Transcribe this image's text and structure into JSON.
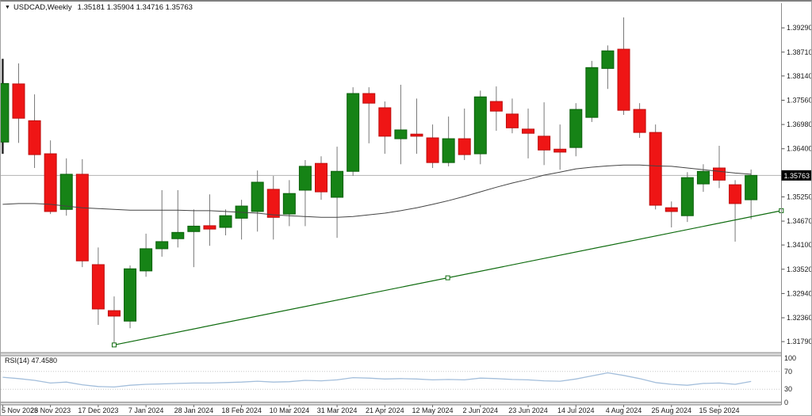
{
  "window": {
    "symbol_dropdown_icon": "▼",
    "title": "USDCAD,Weekly",
    "ohlc_display": "1.35181 1.35904 1.34716 1.35763"
  },
  "chart_data": {
    "type": "candlestick",
    "symbol": "USDCAD",
    "timeframe": "Weekly",
    "current_bar": {
      "open": 1.35181,
      "high": 1.35904,
      "low": 1.34716,
      "close": 1.35763
    },
    "price_axis": {
      "labels": [
        "1.39290",
        "1.38710",
        "1.38140",
        "1.37560",
        "1.36980",
        "1.36400",
        "1.35820",
        "1.35250",
        "1.34670",
        "1.34100",
        "1.33520",
        "1.32940",
        "1.32360",
        "1.31790"
      ],
      "values": [
        1.3929,
        1.3871,
        1.3814,
        1.3756,
        1.3698,
        1.364,
        1.3582,
        1.3525,
        1.3467,
        1.341,
        1.3352,
        1.3294,
        1.3236,
        1.3179
      ],
      "top_price": 1.39596,
      "bottom_price": 1.31527,
      "current_price": 1.35763,
      "current_price_label": "1.35763"
    },
    "x_axis": {
      "tick_labels": [
        "5 Nov 2023",
        "26 Nov 2023",
        "17 Dec 2023",
        "7 Jan 2024",
        "28 Jan 2024",
        "18 Feb 2024",
        "10 Mar 2024",
        "31 Mar 2024",
        "21 Apr 2024",
        "12 May 2024",
        "2 Jun 2024",
        "23 Jun 2024",
        "14 Jul 2024",
        "4 Aug 2024",
        "25 Aug 2024",
        "15 Sep 2024"
      ],
      "tick_every": 3
    },
    "candles": [
      {
        "d": "5 Nov 2023",
        "o": 1.3656,
        "h": 1.3855,
        "l": 1.3628,
        "c": 1.3796
      },
      {
        "d": "12 Nov 2023",
        "o": 1.3795,
        "h": 1.3844,
        "l": 1.3654,
        "c": 1.3713
      },
      {
        "d": "19 Nov 2023",
        "o": 1.3707,
        "h": 1.377,
        "l": 1.3594,
        "c": 1.3626
      },
      {
        "d": "26 Nov 2023",
        "o": 1.3628,
        "h": 1.366,
        "l": 1.3484,
        "c": 1.349
      },
      {
        "d": "3 Dec 2023",
        "o": 1.3495,
        "h": 1.3617,
        "l": 1.348,
        "c": 1.3579
      },
      {
        "d": "10 Dec 2023",
        "o": 1.3579,
        "h": 1.3615,
        "l": 1.3357,
        "c": 1.3372
      },
      {
        "d": "17 Dec 2023",
        "o": 1.3363,
        "h": 1.3404,
        "l": 1.3219,
        "c": 1.3257
      },
      {
        "d": "24 Dec 2023",
        "o": 1.3253,
        "h": 1.3287,
        "l": 1.3171,
        "c": 1.324
      },
      {
        "d": "31 Dec 2023",
        "o": 1.3228,
        "h": 1.3361,
        "l": 1.3211,
        "c": 1.3353
      },
      {
        "d": "7 Jan 2024",
        "o": 1.3348,
        "h": 1.3437,
        "l": 1.3334,
        "c": 1.3401
      },
      {
        "d": "14 Jan 2024",
        "o": 1.3401,
        "h": 1.3541,
        "l": 1.3382,
        "c": 1.3418
      },
      {
        "d": "21 Jan 2024",
        "o": 1.3425,
        "h": 1.3541,
        "l": 1.3404,
        "c": 1.344
      },
      {
        "d": "28 Jan 2024",
        "o": 1.3442,
        "h": 1.3495,
        "l": 1.3357,
        "c": 1.3455
      },
      {
        "d": "4 Feb 2024",
        "o": 1.3456,
        "h": 1.3531,
        "l": 1.3408,
        "c": 1.3448
      },
      {
        "d": "11 Feb 2024",
        "o": 1.3452,
        "h": 1.3495,
        "l": 1.3433,
        "c": 1.348
      },
      {
        "d": "18 Feb 2024",
        "o": 1.3474,
        "h": 1.3518,
        "l": 1.3423,
        "c": 1.3503
      },
      {
        "d": "25 Feb 2024",
        "o": 1.349,
        "h": 1.3588,
        "l": 1.3442,
        "c": 1.356
      },
      {
        "d": "3 Mar 2024",
        "o": 1.3543,
        "h": 1.3575,
        "l": 1.3423,
        "c": 1.3476
      },
      {
        "d": "10 Mar 2024",
        "o": 1.3484,
        "h": 1.3565,
        "l": 1.3455,
        "c": 1.3533
      },
      {
        "d": "17 Mar 2024",
        "o": 1.3541,
        "h": 1.3613,
        "l": 1.3455,
        "c": 1.3598
      },
      {
        "d": "24 Mar 2024",
        "o": 1.3605,
        "h": 1.3622,
        "l": 1.3518,
        "c": 1.3537
      },
      {
        "d": "31 Mar 2024",
        "o": 1.3524,
        "h": 1.3645,
        "l": 1.3427,
        "c": 1.3586
      },
      {
        "d": "7 Apr 2024",
        "o": 1.3586,
        "h": 1.3787,
        "l": 1.3575,
        "c": 1.3772
      },
      {
        "d": "14 Apr 2024",
        "o": 1.3772,
        "h": 1.3787,
        "l": 1.3653,
        "c": 1.3749
      },
      {
        "d": "21 Apr 2024",
        "o": 1.3738,
        "h": 1.3753,
        "l": 1.3628,
        "c": 1.367
      },
      {
        "d": "28 Apr 2024",
        "o": 1.3664,
        "h": 1.3793,
        "l": 1.3603,
        "c": 1.3685
      },
      {
        "d": "5 May 2024",
        "o": 1.3675,
        "h": 1.376,
        "l": 1.3628,
        "c": 1.367
      },
      {
        "d": "12 May 2024",
        "o": 1.3666,
        "h": 1.3698,
        "l": 1.3594,
        "c": 1.3607
      },
      {
        "d": "19 May 2024",
        "o": 1.3607,
        "h": 1.3717,
        "l": 1.3598,
        "c": 1.3664
      },
      {
        "d": "26 May 2024",
        "o": 1.3664,
        "h": 1.3736,
        "l": 1.3613,
        "c": 1.3626
      },
      {
        "d": "2 Jun 2024",
        "o": 1.3628,
        "h": 1.3779,
        "l": 1.3603,
        "c": 1.3764
      },
      {
        "d": "9 Jun 2024",
        "o": 1.3753,
        "h": 1.3789,
        "l": 1.3683,
        "c": 1.373
      },
      {
        "d": "16 Jun 2024",
        "o": 1.3723,
        "h": 1.376,
        "l": 1.3677,
        "c": 1.369
      },
      {
        "d": "23 Jun 2024",
        "o": 1.3687,
        "h": 1.3736,
        "l": 1.3617,
        "c": 1.3677
      },
      {
        "d": "30 Jun 2024",
        "o": 1.367,
        "h": 1.3751,
        "l": 1.3601,
        "c": 1.3637
      },
      {
        "d": "7 Jul 2024",
        "o": 1.3639,
        "h": 1.3698,
        "l": 1.359,
        "c": 1.3632
      },
      {
        "d": "14 Jul 2024",
        "o": 1.3643,
        "h": 1.3749,
        "l": 1.3622,
        "c": 1.3734
      },
      {
        "d": "21 Jul 2024",
        "o": 1.3715,
        "h": 1.385,
        "l": 1.3704,
        "c": 1.3834
      },
      {
        "d": "28 Jul 2024",
        "o": 1.3832,
        "h": 1.3887,
        "l": 1.3783,
        "c": 1.3874
      },
      {
        "d": "4 Aug 2024",
        "o": 1.3878,
        "h": 1.3954,
        "l": 1.3721,
        "c": 1.3732
      },
      {
        "d": "11 Aug 2024",
        "o": 1.3734,
        "h": 1.3749,
        "l": 1.3666,
        "c": 1.3679
      },
      {
        "d": "18 Aug 2024",
        "o": 1.3679,
        "h": 1.3698,
        "l": 1.3495,
        "c": 1.3505
      },
      {
        "d": "25 Aug 2024",
        "o": 1.3499,
        "h": 1.3514,
        "l": 1.3452,
        "c": 1.349
      },
      {
        "d": "1 Sep 2024",
        "o": 1.348,
        "h": 1.3584,
        "l": 1.3465,
        "c": 1.3571
      },
      {
        "d": "8 Sep 2024",
        "o": 1.3556,
        "h": 1.3603,
        "l": 1.3537,
        "c": 1.3586
      },
      {
        "d": "15 Sep 2024",
        "o": 1.3594,
        "h": 1.3647,
        "l": 1.3546,
        "c": 1.3565
      },
      {
        "d": "22 Sep 2024",
        "o": 1.3554,
        "h": 1.3565,
        "l": 1.3418,
        "c": 1.3509
      },
      {
        "d": "29 Sep 2024",
        "o": 1.35181,
        "h": 1.35904,
        "l": 1.34716,
        "c": 1.35763
      }
    ],
    "moving_average": [
      1.3507,
      1.3509,
      1.3509,
      1.3507,
      1.3503,
      1.3499,
      1.3497,
      1.3495,
      1.3493,
      1.3493,
      1.3493,
      1.3493,
      1.3492,
      1.3492,
      1.349,
      1.3488,
      1.3486,
      1.3482,
      1.348,
      1.3478,
      1.3476,
      1.3476,
      1.3478,
      1.3482,
      1.3486,
      1.3492,
      1.3499,
      1.3507,
      1.3516,
      1.3526,
      1.3537,
      1.3548,
      1.3558,
      1.3567,
      1.3577,
      1.3584,
      1.3592,
      1.3596,
      1.3599,
      1.3601,
      1.3601,
      1.3599,
      1.3598,
      1.3594,
      1.359,
      1.3586,
      1.3582,
      1.3579
    ],
    "trendline": {
      "start_index": 7,
      "start_price": 1.3171,
      "end_index": 48.9,
      "end_price": 1.3492,
      "selected": true
    },
    "rsi": {
      "label": "RSI(14) 47.4580",
      "period": 14,
      "value": 47.458,
      "levels": [
        70,
        30
      ],
      "axis_labels": [
        "100",
        "70",
        "30",
        "0"
      ],
      "axis_values": [
        100,
        70,
        30,
        0
      ],
      "values": [
        57,
        54,
        50,
        44,
        46,
        40,
        36,
        35,
        39,
        41,
        42,
        43,
        44,
        44,
        45,
        46,
        48,
        46,
        47,
        50,
        49,
        51,
        56,
        55,
        53,
        54,
        53,
        51,
        52,
        51,
        55,
        54,
        52,
        51,
        49,
        48,
        53,
        60,
        67,
        61,
        54,
        45,
        41,
        39,
        43,
        44,
        41,
        47.458
      ]
    },
    "colors": {
      "bull": "#168316",
      "bull_border": "#0b600b",
      "bear": "#ef1515",
      "bear_border": "#bd0f0f",
      "wick": "#787878",
      "ma_line": "#444444",
      "trendline": "#0e6b0e",
      "rsi_line": "#a3bedb",
      "rsi_level": "#c8c8c8",
      "current_price_line": "#b3b3b3",
      "current_price_bg": "#000000",
      "current_price_fg": "#ffffff",
      "axis_border": "#8c8c8c",
      "separator_fill": "#d9d9d9",
      "text": "#1a1a1a"
    }
  }
}
